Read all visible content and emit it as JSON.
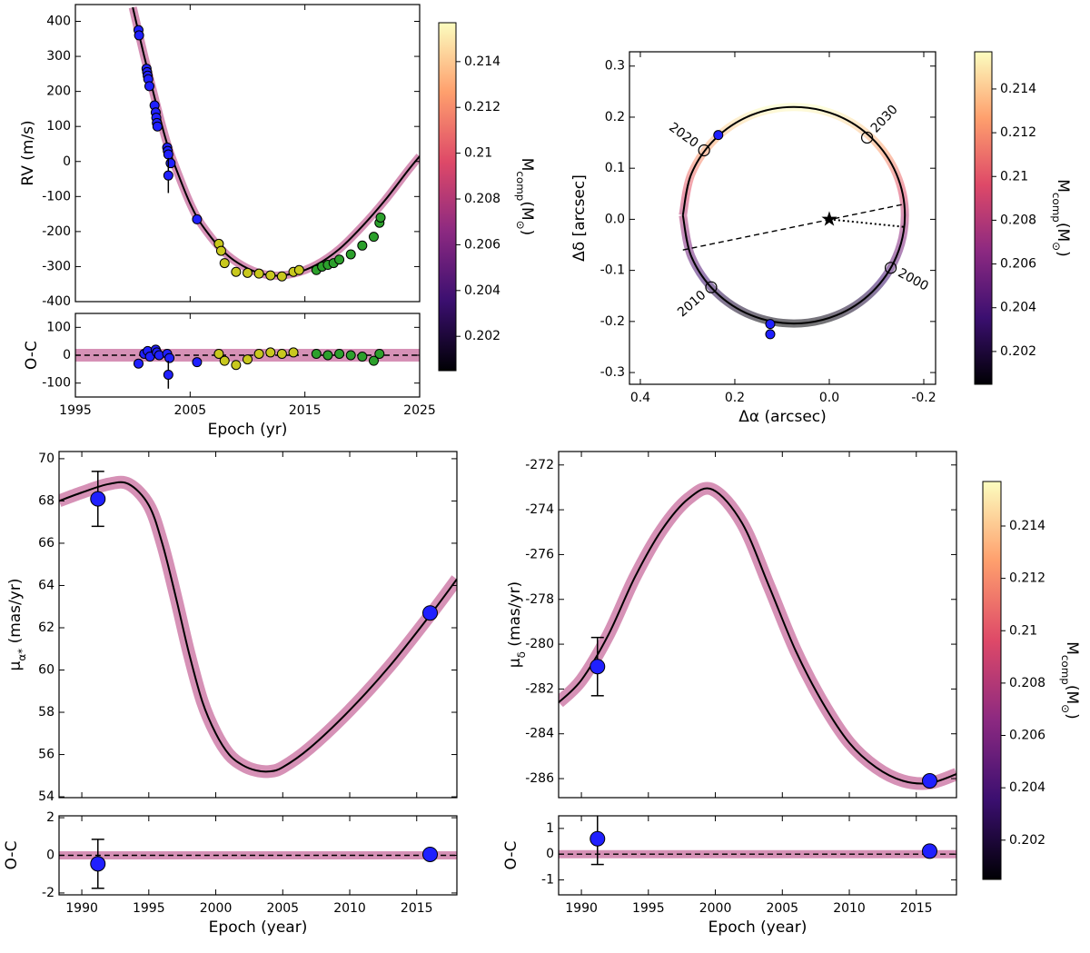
{
  "chart_data": [
    {
      "type": "line",
      "ylabel": "RV (m/s)",
      "xlim": [
        1995,
        2025
      ],
      "ylim": [
        -400,
        448
      ],
      "xticks": [
        1995,
        2005,
        2015,
        2025
      ],
      "yticks": [
        -400,
        -300,
        -200,
        -100,
        0,
        100,
        200,
        300,
        400
      ],
      "xtick_labels": false,
      "colorbar": {
        "label": [
          "M",
          "comp",
          "(M",
          "⊙",
          ")"
        ],
        "lim": [
          0.2005,
          0.2157
        ],
        "ticks": [
          0.202,
          0.204,
          0.206,
          0.208,
          0.21,
          0.212,
          0.214
        ]
      },
      "series": [
        {
          "style": "band",
          "color": "#b5367a",
          "x": [
            2000,
            2001,
            2002,
            2003,
            2004,
            2005,
            2006,
            2008,
            2010,
            2012,
            2014,
            2016,
            2018,
            2020,
            2022,
            2024,
            2025
          ],
          "values": [
            440,
            300,
            170,
            50,
            -40,
            -120,
            -180,
            -260,
            -305,
            -325,
            -320,
            -295,
            -250,
            -185,
            -110,
            -25,
            15
          ]
        },
        {
          "style": "line",
          "color": "#000000",
          "x": [
            2000,
            2001,
            2002,
            2003,
            2004,
            2005,
            2006,
            2008,
            2010,
            2012,
            2014,
            2016,
            2018,
            2020,
            2022,
            2024,
            2025
          ],
          "values": [
            440,
            300,
            170,
            50,
            -40,
            -120,
            -180,
            -260,
            -305,
            -325,
            -320,
            -295,
            -250,
            -185,
            -110,
            -25,
            15
          ]
        },
        {
          "style": "markers",
          "color": "#2020ff",
          "x": [
            2000.5,
            2000.55,
            2001.2,
            2001.25,
            2001.3,
            2001.35,
            2001.45,
            2001.9,
            2002,
            2002.05,
            2002.1,
            2002.15,
            2003,
            2003.05,
            2003.1,
            2003.3,
            2005.6
          ],
          "values": [
            375,
            360,
            265,
            255,
            245,
            235,
            215,
            160,
            140,
            125,
            110,
            100,
            40,
            30,
            20,
            -5,
            -165
          ]
        },
        {
          "style": "errors",
          "color": "#2020ff",
          "x": [
            2003.1
          ],
          "values": [
            -40
          ],
          "errors": [
            50
          ]
        },
        {
          "style": "markers",
          "color": "#c8c81e",
          "x": [
            2007.5,
            2007.7,
            2008,
            2009,
            2010,
            2011,
            2012,
            2013,
            2014,
            2014.5
          ],
          "values": [
            -235,
            -255,
            -290,
            -315,
            -318,
            -320,
            -325,
            -328,
            -315,
            -310
          ]
        },
        {
          "style": "markers",
          "color": "#2ca02c",
          "x": [
            2016,
            2016.5,
            2017,
            2017.5,
            2018,
            2019,
            2020,
            2021,
            2021.5,
            2021.6
          ],
          "values": [
            -310,
            -300,
            -295,
            -290,
            -280,
            -265,
            -240,
            -215,
            -175,
            -160
          ]
        }
      ]
    },
    {
      "type": "line",
      "ylabel": "O-C",
      "xlabel": "Epoch (yr)",
      "xlim": [
        1995,
        2025
      ],
      "ylim": [
        -150,
        150
      ],
      "xticks": [
        1995,
        2005,
        2015,
        2025
      ],
      "yticks": [
        -100,
        0,
        100
      ],
      "series": [
        {
          "style": "band",
          "color": "#b5367a",
          "x": [
            1995,
            2005,
            2015,
            2025
          ],
          "values": [
            0,
            0,
            0,
            0
          ]
        },
        {
          "style": "dashed",
          "color": "#000000",
          "x": [
            1995,
            2025
          ],
          "values": [
            0,
            0
          ]
        },
        {
          "style": "markers",
          "color": "#2020ff",
          "x": [
            2000.5,
            2001,
            2001.3,
            2001.5,
            2002,
            2002.1,
            2002.3,
            2003,
            2003.2,
            2005.6
          ],
          "values": [
            -30,
            5,
            15,
            -5,
            20,
            10,
            0,
            5,
            -10,
            -25
          ]
        },
        {
          "style": "errors",
          "color": "#2020ff",
          "x": [
            2003.1
          ],
          "values": [
            -70
          ],
          "errors": [
            50
          ]
        },
        {
          "style": "markers",
          "color": "#c8c81e",
          "x": [
            2007.5,
            2008,
            2009,
            2010,
            2011,
            2012,
            2013,
            2014
          ],
          "values": [
            5,
            -20,
            -35,
            -15,
            5,
            10,
            5,
            10
          ]
        },
        {
          "style": "markers",
          "color": "#2ca02c",
          "x": [
            2016,
            2017,
            2018,
            2019,
            2020,
            2021,
            2021.5
          ],
          "values": [
            5,
            0,
            5,
            0,
            -5,
            -20,
            5
          ]
        }
      ]
    },
    {
      "type": "orbit",
      "xlabel": "Δα (arcsec)",
      "ylabel": "Δδ [arcsec]",
      "xlim": [
        0.423,
        -0.225
      ],
      "ylim": [
        -0.323,
        0.328
      ],
      "xticks": [
        0.4,
        0.2,
        {
          "value": 0,
          "label": "0.0"
        },
        -0.2
      ],
      "yticks": [
        -0.3,
        -0.2,
        -0.1,
        {
          "value": 0,
          "label": "0.0"
        },
        0.1,
        0.2,
        0.3
      ],
      "colorbar": {
        "label": [
          "M",
          "comp",
          "(M",
          "⊙",
          ")"
        ],
        "lim": [
          0.2005,
          0.2157
        ],
        "ticks": [
          0.202,
          0.204,
          0.206,
          0.208,
          0.21,
          0.212,
          0.214
        ]
      },
      "series": [
        {
          "style": "band",
          "color": "#b5367a",
          "x": [
            0.31,
            0.292,
            0.241,
            0.165,
            0.075,
            -0.015,
            -0.091,
            -0.142,
            -0.16,
            -0.142,
            -0.091,
            -0.015,
            0.075,
            0.165,
            0.241,
            0.292,
            0.31
          ],
          "values": [
            0.008,
            0.089,
            0.158,
            0.204,
            0.22,
            0.204,
            0.158,
            0.089,
            0.008,
            -0.073,
            -0.142,
            -0.188,
            -0.204,
            -0.188,
            -0.142,
            -0.073,
            0.008
          ]
        },
        {
          "style": "line",
          "color": "#000000",
          "x": [
            0.31,
            0.292,
            0.241,
            0.165,
            0.075,
            -0.015,
            -0.091,
            -0.142,
            -0.16,
            -0.142,
            -0.091,
            -0.015,
            0.075,
            0.165,
            0.241,
            0.292,
            0.31
          ],
          "values": [
            0.008,
            0.089,
            0.158,
            0.204,
            0.22,
            0.204,
            0.158,
            0.089,
            0.008,
            -0.073,
            -0.142,
            -0.188,
            -0.204,
            -0.188,
            -0.142,
            -0.073,
            0.008
          ]
        },
        {
          "style": "dashed",
          "color": "#000000",
          "x": [
            0.31,
            -0.16
          ],
          "values": [
            -0.06,
            0.03
          ]
        },
        {
          "style": "dotted",
          "color": "#000000",
          "x": [
            0,
            -0.16
          ],
          "values": [
            0,
            -0.015
          ]
        },
        {
          "style": "markers",
          "color": "#2020ff",
          "x": [
            0.235,
            0.125,
            0.125
          ],
          "values": [
            0.165,
            -0.205,
            -0.225
          ]
        },
        {
          "style": "star",
          "color": "#000000",
          "x": [
            0
          ],
          "values": [
            0
          ]
        },
        {
          "style": "open",
          "color": "#000000",
          "labels": [
            "2000",
            "2010",
            "2020",
            "2030"
          ],
          "x": [
            -0.13,
            0.25,
            0.265,
            -0.08
          ],
          "values": [
            -0.095,
            -0.133,
            0.135,
            0.16
          ]
        }
      ]
    },
    {
      "type": "line",
      "ylabel": [
        "μ",
        "α*",
        " (mas/yr)"
      ],
      "xlim": [
        1988.3,
        2018
      ],
      "ylim": [
        53.96,
        70.34
      ],
      "xticks": [
        1990,
        1995,
        2000,
        2005,
        2010,
        2015
      ],
      "yticks": [
        54,
        56,
        58,
        60,
        62,
        64,
        66,
        68,
        70
      ],
      "xtick_labels": false,
      "series": [
        {
          "style": "band",
          "color": "#b5367a",
          "x": [
            1988.3,
            1990,
            1992,
            1993.5,
            1995,
            1996,
            1997,
            1998,
            1999,
            2000,
            2001,
            2002,
            2003,
            2004,
            2005,
            2007,
            2010,
            2013,
            2016,
            2018
          ],
          "values": [
            68.0,
            68.4,
            68.8,
            68.8,
            67.8,
            66.0,
            63.5,
            60.8,
            58.5,
            57.0,
            56.0,
            55.5,
            55.25,
            55.2,
            55.4,
            56.3,
            58.1,
            60.2,
            62.6,
            64.3
          ]
        },
        {
          "style": "line",
          "color": "#000000",
          "x": [
            1988.3,
            1990,
            1992,
            1993.5,
            1995,
            1996,
            1997,
            1998,
            1999,
            2000,
            2001,
            2002,
            2003,
            2004,
            2005,
            2007,
            2010,
            2013,
            2016,
            2018
          ],
          "values": [
            68.0,
            68.4,
            68.8,
            68.8,
            67.8,
            66.0,
            63.5,
            60.8,
            58.5,
            57.0,
            56.0,
            55.5,
            55.25,
            55.2,
            55.4,
            56.3,
            58.1,
            60.2,
            62.6,
            64.3
          ]
        },
        {
          "style": "errors",
          "color": "#2020ff",
          "x": [
            1991.2
          ],
          "values": [
            68.1
          ],
          "errors": [
            1.3
          ]
        },
        {
          "style": "markers",
          "color": "#2020ff",
          "x": [
            2016
          ],
          "values": [
            62.7
          ]
        }
      ]
    },
    {
      "type": "line",
      "ylabel": "O-C",
      "xlabel": "Epoch (year)",
      "xlim": [
        1988.3,
        2018
      ],
      "ylim": [
        -2.1,
        2.1
      ],
      "xticks": [
        1990,
        1995,
        2000,
        2005,
        2010,
        2015
      ],
      "yticks": [
        -2,
        0,
        2
      ],
      "series": [
        {
          "style": "band",
          "color": "#b5367a",
          "x": [
            1988.3,
            1997,
            2005,
            2018
          ],
          "values": [
            0,
            0,
            0,
            0
          ]
        },
        {
          "style": "dashed",
          "color": "#000000",
          "x": [
            1988.3,
            2018
          ],
          "values": [
            0,
            0
          ]
        },
        {
          "style": "errors",
          "color": "#2020ff",
          "x": [
            1991.2
          ],
          "values": [
            -0.45
          ],
          "errors": [
            1.3
          ]
        },
        {
          "style": "markers",
          "color": "#2020ff",
          "x": [
            2016
          ],
          "values": [
            0.05
          ]
        }
      ]
    },
    {
      "type": "line",
      "ylabel": [
        "μ",
        "δ",
        " (mas/yr)"
      ],
      "xlim": [
        1988.3,
        2018
      ],
      "ylim": [
        -286.85,
        -271.4
      ],
      "xticks": [
        1990,
        1995,
        2000,
        2005,
        2010,
        2015
      ],
      "yticks": [
        -286,
        -284,
        -282,
        -280,
        -278,
        -276,
        -274,
        -272
      ],
      "xtick_labels": false,
      "colorbar": {
        "label": [
          "M",
          "comp",
          "(M",
          "⊙",
          ")"
        ],
        "lim": [
          0.2005,
          0.2157
        ],
        "ticks": [
          0.202,
          0.204,
          0.206,
          0.208,
          0.21,
          0.212,
          0.214
        ]
      },
      "series": [
        {
          "style": "band",
          "color": "#b5367a",
          "x": [
            1988.3,
            1990,
            1992,
            1994,
            1996,
            1998,
            1999.8,
            2002,
            2004,
            2006,
            2008,
            2010,
            2012,
            2014,
            2016,
            2018
          ],
          "values": [
            -282.6,
            -281.6,
            -279.6,
            -277.0,
            -274.9,
            -273.5,
            -273.1,
            -274.6,
            -277.4,
            -280.3,
            -282.6,
            -284.4,
            -285.5,
            -286.1,
            -286.2,
            -285.8
          ]
        },
        {
          "style": "line",
          "color": "#000000",
          "x": [
            1988.3,
            1990,
            1992,
            1994,
            1996,
            1998,
            1999.8,
            2002,
            2004,
            2006,
            2008,
            2010,
            2012,
            2014,
            2016,
            2018
          ],
          "values": [
            -282.6,
            -281.6,
            -279.6,
            -277.0,
            -274.9,
            -273.5,
            -273.1,
            -274.6,
            -277.4,
            -280.3,
            -282.6,
            -284.4,
            -285.5,
            -286.1,
            -286.2,
            -285.8
          ]
        },
        {
          "style": "errors",
          "color": "#2020ff",
          "x": [
            1991.2
          ],
          "values": [
            -281.0
          ],
          "errors": [
            1.3
          ]
        },
        {
          "style": "markers",
          "color": "#2020ff",
          "x": [
            2016
          ],
          "values": [
            -286.1
          ]
        }
      ]
    },
    {
      "type": "line",
      "ylabel": "O-C",
      "xlabel": "Epoch (year)",
      "xlim": [
        1988.3,
        2018
      ],
      "ylim": [
        -1.58,
        1.49
      ],
      "xticks": [
        1990,
        1995,
        2000,
        2005,
        2010,
        2015
      ],
      "yticks": [
        -1,
        0,
        1
      ],
      "series": [
        {
          "style": "band",
          "color": "#b5367a",
          "x": [
            1988.3,
            1997,
            2005,
            2018
          ],
          "values": [
            0,
            0,
            0,
            0
          ]
        },
        {
          "style": "dashed",
          "color": "#000000",
          "x": [
            1988.3,
            2018
          ],
          "values": [
            0,
            0
          ]
        },
        {
          "style": "errors",
          "color": "#2020ff",
          "x": [
            1991.2
          ],
          "values": [
            0.6
          ],
          "errors": [
            1.0
          ]
        },
        {
          "style": "markers",
          "color": "#2020ff",
          "x": [
            2016
          ],
          "values": [
            0.12
          ]
        }
      ]
    }
  ]
}
